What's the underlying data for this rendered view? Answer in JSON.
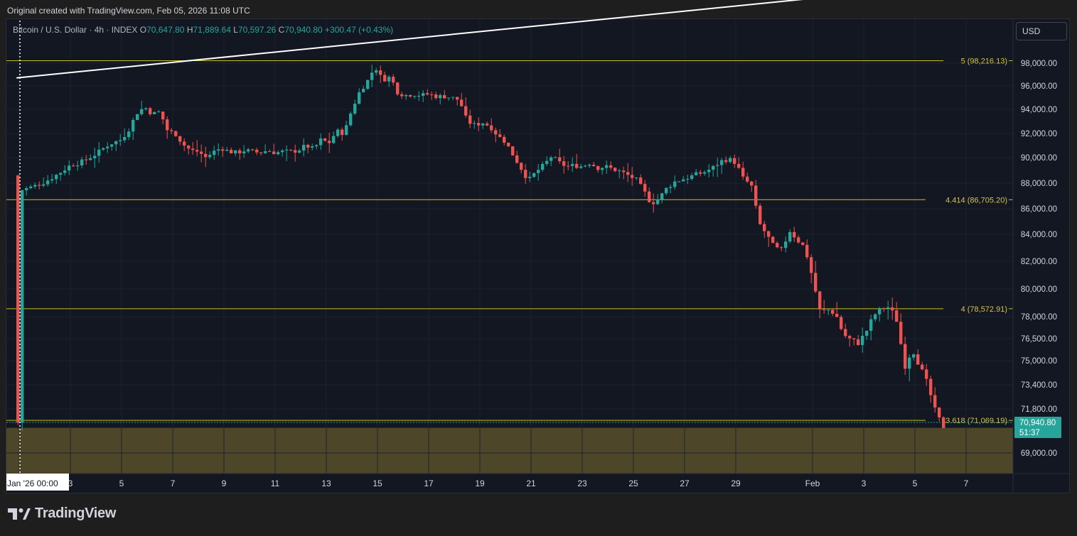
{
  "caption": "Original created with TradingView.com, Feb 05, 2026 11:08 UTC",
  "legend": {
    "symbol": "Bitcoin / U.S. Dollar · 4h · INDEX",
    "open_label": "O",
    "open": "70,647.80",
    "high_label": "H",
    "high": "71,889.64",
    "low_label": "L",
    "low": "70,597.26",
    "close_label": "C",
    "close": "70,940.80",
    "change": "+300.47 (+0.43%)"
  },
  "currency_button": "USD",
  "brand": "TradingView",
  "colors": {
    "background": "#131722",
    "up": "#26a69a",
    "down": "#ef5350",
    "fib_line": "#c8c020",
    "fib_text": "#d4c24a",
    "zone": "#4d4629",
    "trendline": "#ffffff"
  },
  "chart_data": {
    "type": "candlestick",
    "title": "Bitcoin / U.S. Dollar",
    "timeframe": "4h",
    "price_axis_labels": [
      "98,000.00",
      "96,000.00",
      "94,000.00",
      "92,000.00",
      "90,000.00",
      "88,000.00",
      "86,000.00",
      "84,000.00",
      "82,000.00",
      "80,000.00",
      "78,000.00",
      "76,500.00",
      "75,000.00",
      "73,400.00",
      "71,800.00",
      "69,000.00"
    ],
    "price_axis_values": [
      98000,
      96000,
      94000,
      92000,
      90000,
      88000,
      86000,
      84000,
      82000,
      80000,
      78000,
      76500,
      75000,
      73400,
      71800,
      69000
    ],
    "x_ticks": [
      {
        "label": "Jan '26  00:00",
        "day": 1
      },
      {
        "label": "3",
        "day": 3
      },
      {
        "label": "5",
        "day": 5
      },
      {
        "label": "7",
        "day": 7
      },
      {
        "label": "9",
        "day": 9
      },
      {
        "label": "11",
        "day": 11
      },
      {
        "label": "13",
        "day": 13
      },
      {
        "label": "15",
        "day": 15
      },
      {
        "label": "17",
        "day": 17
      },
      {
        "label": "19",
        "day": 19
      },
      {
        "label": "21",
        "day": 21
      },
      {
        "label": "23",
        "day": 23
      },
      {
        "label": "25",
        "day": 25
      },
      {
        "label": "27",
        "day": 27
      },
      {
        "label": "29",
        "day": 29
      },
      {
        "label": "Feb",
        "day": 32
      },
      {
        "label": "3",
        "day": 34
      },
      {
        "label": "5",
        "day": 36
      },
      {
        "label": "7",
        "day": 38
      }
    ],
    "fib_levels": [
      {
        "label": "5 (98,216.13)",
        "value": 98216.13
      },
      {
        "label": "4.414 (86,705.20)",
        "value": 86705.2
      },
      {
        "label": "4 (78,572.91)",
        "value": 78572.91
      },
      {
        "label": "3.618 (71,069.19)",
        "value": 71069.19
      }
    ],
    "zone": {
      "from": 70597.26,
      "to": 68000
    },
    "trendline": [
      {
        "day": 0.95,
        "price": 96700
      },
      {
        "day": 33.3,
        "price": 104000
      }
    ],
    "last_price": {
      "label": "70,940.80",
      "countdown": "51:37",
      "value": 70940.8
    },
    "close_path": [
      [
        1.0,
        87400
      ],
      [
        1.5,
        87700
      ],
      [
        2.0,
        88100
      ],
      [
        2.5,
        88700
      ],
      [
        3.0,
        89400
      ],
      [
        3.5,
        89700
      ],
      [
        4.0,
        90300
      ],
      [
        4.5,
        91100
      ],
      [
        5.0,
        91500
      ],
      [
        5.3,
        92400
      ],
      [
        5.6,
        93700
      ],
      [
        5.9,
        94200
      ],
      [
        6.2,
        93600
      ],
      [
        6.5,
        93800
      ],
      [
        6.8,
        92200
      ],
      [
        7.1,
        92000
      ],
      [
        7.4,
        91100
      ],
      [
        7.7,
        90600
      ],
      [
        8.0,
        90500
      ],
      [
        8.3,
        90000
      ],
      [
        8.6,
        90500
      ],
      [
        8.9,
        90800
      ],
      [
        9.2,
        90500
      ],
      [
        9.5,
        90400
      ],
      [
        9.8,
        90600
      ],
      [
        10.1,
        90500
      ],
      [
        10.4,
        90400
      ],
      [
        10.7,
        90600
      ],
      [
        11.0,
        90400
      ],
      [
        11.3,
        90500
      ],
      [
        11.6,
        90500
      ],
      [
        11.9,
        90600
      ],
      [
        12.2,
        91000
      ],
      [
        12.5,
        90700
      ],
      [
        12.8,
        91500
      ],
      [
        13.1,
        91200
      ],
      [
        13.4,
        92200
      ],
      [
        13.7,
        92000
      ],
      [
        14.0,
        94000
      ],
      [
        14.3,
        95500
      ],
      [
        14.6,
        96400
      ],
      [
        14.9,
        97700
      ],
      [
        15.2,
        96500
      ],
      [
        15.5,
        96800
      ],
      [
        15.8,
        95400
      ],
      [
        16.1,
        95200
      ],
      [
        16.4,
        95300
      ],
      [
        16.7,
        95200
      ],
      [
        17.0,
        95300
      ],
      [
        17.3,
        95100
      ],
      [
        17.6,
        95100
      ],
      [
        17.9,
        95000
      ],
      [
        18.2,
        94800
      ],
      [
        18.5,
        93000
      ],
      [
        18.8,
        92700
      ],
      [
        19.1,
        92900
      ],
      [
        19.4,
        92600
      ],
      [
        19.7,
        91800
      ],
      [
        20.0,
        91300
      ],
      [
        20.3,
        90200
      ],
      [
        20.6,
        89200
      ],
      [
        20.9,
        88200
      ],
      [
        21.2,
        88900
      ],
      [
        21.5,
        89400
      ],
      [
        21.8,
        90100
      ],
      [
        22.1,
        89600
      ],
      [
        22.4,
        89300
      ],
      [
        22.7,
        89400
      ],
      [
        23.0,
        89300
      ],
      [
        23.3,
        89600
      ],
      [
        23.6,
        89200
      ],
      [
        23.9,
        89300
      ],
      [
        24.2,
        89100
      ],
      [
        24.5,
        88900
      ],
      [
        24.8,
        88600
      ],
      [
        25.1,
        88300
      ],
      [
        25.4,
        87400
      ],
      [
        25.7,
        86400
      ],
      [
        26.0,
        86800
      ],
      [
        26.3,
        87600
      ],
      [
        26.6,
        88100
      ],
      [
        26.9,
        88300
      ],
      [
        27.2,
        88500
      ],
      [
        27.5,
        88700
      ],
      [
        27.8,
        88900
      ],
      [
        28.1,
        89200
      ],
      [
        28.4,
        89700
      ],
      [
        28.7,
        89900
      ],
      [
        29.0,
        89600
      ],
      [
        29.3,
        88300
      ],
      [
        29.6,
        87900
      ],
      [
        29.9,
        84900
      ],
      [
        30.2,
        84000
      ],
      [
        30.5,
        83000
      ],
      [
        30.8,
        82800
      ],
      [
        31.1,
        84300
      ],
      [
        31.4,
        83600
      ],
      [
        31.7,
        83000
      ],
      [
        32.0,
        80800
      ],
      [
        32.3,
        78300
      ],
      [
        32.6,
        78500
      ],
      [
        32.9,
        78200
      ],
      [
        33.2,
        76800
      ],
      [
        33.5,
        76400
      ],
      [
        33.8,
        76200
      ],
      [
        34.1,
        77000
      ],
      [
        34.4,
        78100
      ],
      [
        34.7,
        78600
      ],
      [
        35.0,
        78700
      ],
      [
        35.3,
        77700
      ],
      [
        35.6,
        74600
      ],
      [
        35.9,
        75800
      ],
      [
        36.2,
        74600
      ],
      [
        36.5,
        73400
      ],
      [
        36.8,
        71600
      ],
      [
        37.1,
        70640
      ],
      [
        37.2,
        70941
      ]
    ]
  }
}
